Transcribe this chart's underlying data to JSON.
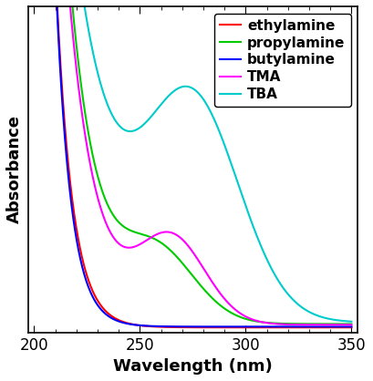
{
  "xlabel": "Wavelength (nm)",
  "ylabel": "Absorbance",
  "xlim": [
    197,
    353
  ],
  "legend": [
    "ethylamine",
    "propylamine",
    "butylamine",
    "TMA",
    "TBA"
  ],
  "colors": [
    "#ff0000",
    "#00cc00",
    "#0000ff",
    "#ff00ff",
    "#00cccc"
  ],
  "xticks": [
    200,
    250,
    300,
    350
  ],
  "curves": {
    "ethylamine": {
      "base": 0.003,
      "amp1": 3.5,
      "decay1": 0.13,
      "shoulders": []
    },
    "propylamine": {
      "base": 0.012,
      "amp1": 3.2,
      "decay1": 0.075,
      "shoulders": [
        [
          0.18,
          258,
          18
        ]
      ]
    },
    "butylamine": {
      "base": 0.005,
      "amp1": 3.8,
      "decay1": 0.14,
      "shoulders": []
    },
    "TMA": {
      "base": 0.01,
      "amp1": 3.0,
      "decay1": 0.075,
      "shoulders": [
        [
          0.22,
          265,
          16
        ]
      ]
    },
    "TBA": {
      "base": 0.015,
      "amp1": 2.5,
      "decay1": 0.048,
      "shoulders": [
        [
          0.55,
          275,
          22
        ]
      ]
    }
  }
}
